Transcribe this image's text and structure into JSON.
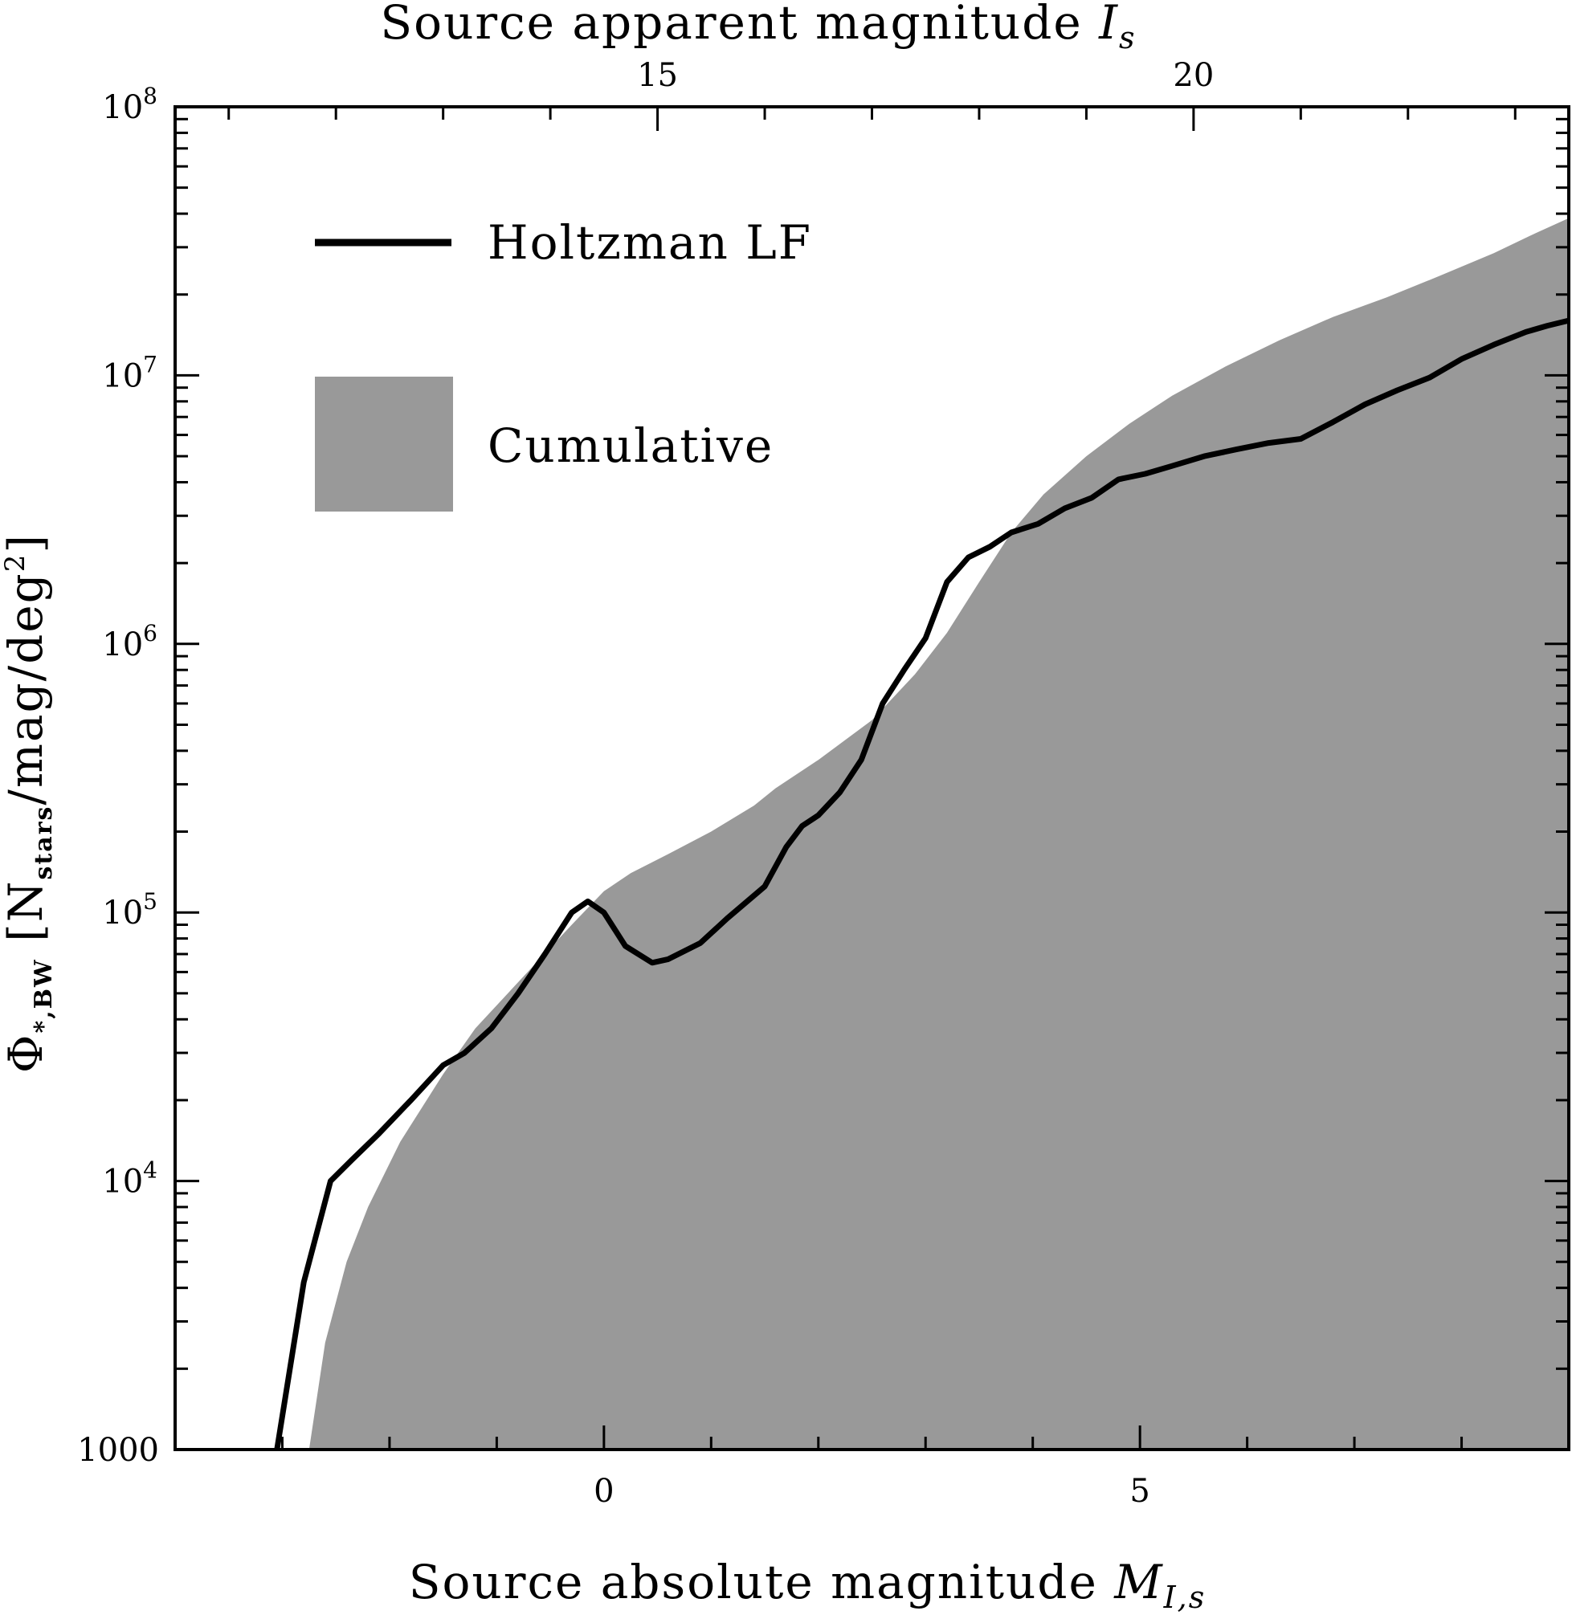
{
  "chart_data": {
    "type": "area",
    "x_axis_bottom": {
      "label_text": "Source absolute magnitude ",
      "label_symbol": "M",
      "label_subscript": "I,s",
      "range": [
        -4,
        9
      ],
      "major_ticks": [
        0,
        5
      ],
      "tick_labels": [
        "0",
        "5"
      ],
      "minor_step": 1
    },
    "x_axis_top": {
      "label_text": "Source apparent magnitude ",
      "label_symbol": "I",
      "label_subscript": "s",
      "offset_from_bottom": 14.5,
      "major_ticks": [
        15,
        20
      ],
      "tick_labels": [
        "15",
        "20"
      ],
      "minor_step": 1
    },
    "y_axis": {
      "label_phi": "Φ",
      "label_phi_sub": "*,BW",
      "label_bracket_open": "[",
      "label_n": "N",
      "label_n_sub": "stars",
      "label_unit": "/mag/deg",
      "label_unit_sup": "2",
      "label_bracket_close": "]",
      "scale": "log",
      "range": [
        1000,
        100000000
      ],
      "ticks": [
        {
          "value": 1000,
          "label": "1000",
          "base": "",
          "exp": ""
        },
        {
          "value": 10000,
          "label": "",
          "base": "10",
          "exp": "4"
        },
        {
          "value": 100000,
          "label": "",
          "base": "10",
          "exp": "5"
        },
        {
          "value": 1000000,
          "label": "",
          "base": "10",
          "exp": "6"
        },
        {
          "value": 10000000,
          "label": "",
          "base": "10",
          "exp": "7"
        },
        {
          "value": 100000000,
          "label": "",
          "base": "10",
          "exp": "8"
        }
      ]
    },
    "grid": false,
    "legend_placement": "top-left",
    "series": [
      {
        "name": "Holtzman LF",
        "kind": "line",
        "color": "#000000",
        "x": [
          -3.05,
          -2.8,
          -2.55,
          -2.35,
          -2.1,
          -1.8,
          -1.5,
          -1.3,
          -1.05,
          -0.8,
          -0.55,
          -0.3,
          -0.15,
          0.0,
          0.2,
          0.45,
          0.6,
          0.9,
          1.15,
          1.5,
          1.7,
          1.85,
          2.0,
          2.2,
          2.4,
          2.6,
          2.8,
          3.0,
          3.2,
          3.4,
          3.6,
          3.8,
          4.05,
          4.3,
          4.55,
          4.8,
          5.05,
          5.3,
          5.6,
          5.9,
          6.2,
          6.5,
          6.8,
          7.1,
          7.4,
          7.7,
          8.0,
          8.3,
          8.6,
          8.8,
          9.0
        ],
        "y": [
          1000,
          4200,
          10000,
          12000,
          15000,
          20000,
          27000,
          30000,
          37000,
          50000,
          70000,
          100000,
          110000,
          100000,
          75000,
          65000,
          67000,
          77000,
          95000,
          125000,
          175000,
          210000,
          230000,
          280000,
          370000,
          600000,
          800000,
          1050000,
          1700000,
          2100000,
          2300000,
          2600000,
          2800000,
          3200000,
          3500000,
          4100000,
          4300000,
          4600000,
          5000000,
          5300000,
          5600000,
          5800000,
          6700000,
          7800000,
          8800000,
          9800000,
          11500000,
          13000000,
          14500000,
          15300000,
          16000000
        ]
      },
      {
        "name": "Cumulative",
        "kind": "area",
        "color": "#999999",
        "x": [
          -2.75,
          -2.6,
          -2.4,
          -2.2,
          -1.9,
          -1.5,
          -1.2,
          -0.8,
          -0.3,
          0.0,
          0.25,
          0.6,
          1.0,
          1.4,
          1.6,
          2.0,
          2.5,
          2.9,
          3.2,
          3.5,
          3.8,
          4.1,
          4.5,
          4.9,
          5.3,
          5.8,
          6.3,
          6.8,
          7.3,
          7.8,
          8.3,
          8.7,
          9.0
        ],
        "y": [
          1000,
          2500,
          5000,
          8000,
          14000,
          25000,
          37000,
          55000,
          90000,
          120000,
          140000,
          165000,
          200000,
          250000,
          290000,
          370000,
          520000,
          770000,
          1100000,
          1700000,
          2600000,
          3600000,
          5000000,
          6600000,
          8400000,
          10800000,
          13500000,
          16500000,
          19500000,
          23500000,
          28500000,
          34000000,
          38500000
        ]
      }
    ]
  }
}
